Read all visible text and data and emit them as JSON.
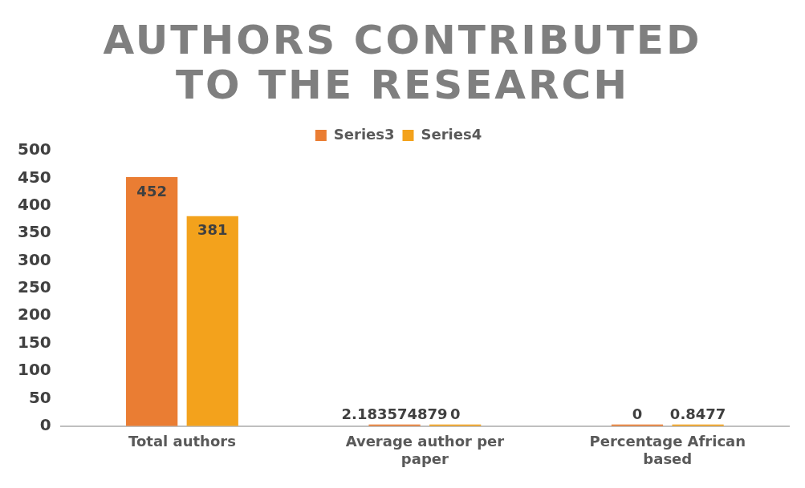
{
  "chart_data": {
    "type": "bar",
    "title": "AUTHORS CONTRIBUTED TO THE RESEARCH",
    "categories": [
      "Total authors",
      "Average author per paper",
      "Percentage African based"
    ],
    "series": [
      {
        "name": "Series3",
        "color": "#ea7d33",
        "values": [
          452,
          2.183574879,
          0
        ]
      },
      {
        "name": "Series4",
        "color": "#f3a21c",
        "values": [
          381,
          0,
          0.8477
        ]
      }
    ],
    "ylim": [
      0,
      500
    ],
    "yticks": [
      0,
      50,
      100,
      150,
      200,
      250,
      300,
      350,
      400,
      450,
      500
    ],
    "grid": false,
    "legend": "top",
    "data_labels": true
  }
}
